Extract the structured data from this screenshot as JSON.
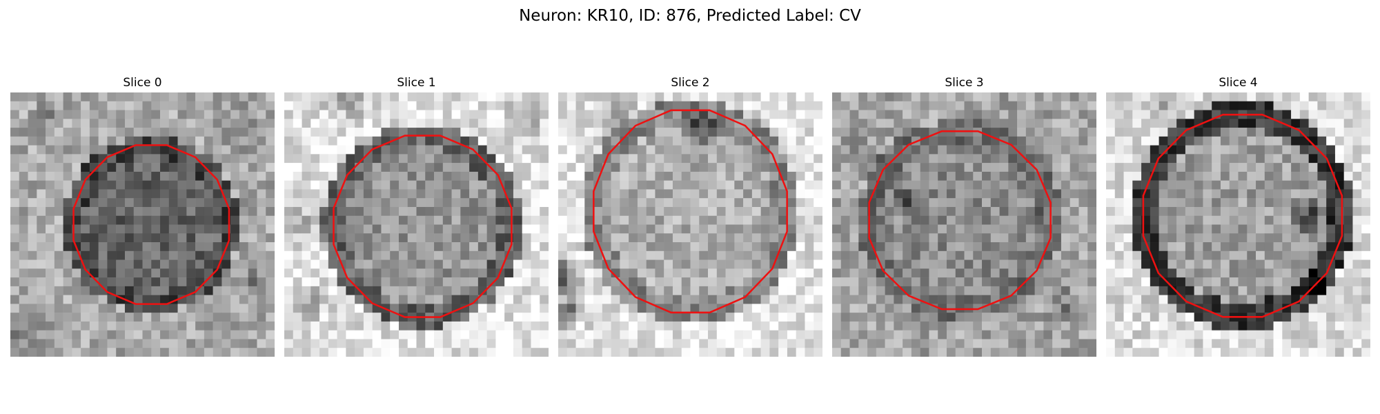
{
  "figure": {
    "title": "Neuron: KR10, ID: 876, Predicted Label: CV"
  },
  "slices": [
    {
      "title": "Slice 0",
      "image": "grayscale-em-patch",
      "contour_color": "#ee1111"
    },
    {
      "title": "Slice 1",
      "image": "grayscale-em-patch",
      "contour_color": "#ee1111"
    },
    {
      "title": "Slice 2",
      "image": "grayscale-em-patch",
      "contour_color": "#ee1111"
    },
    {
      "title": "Slice 3",
      "image": "grayscale-em-patch",
      "contour_color": "#ee1111"
    },
    {
      "title": "Slice 4",
      "image": "grayscale-em-patch",
      "contour_color": "#ee1111"
    }
  ]
}
